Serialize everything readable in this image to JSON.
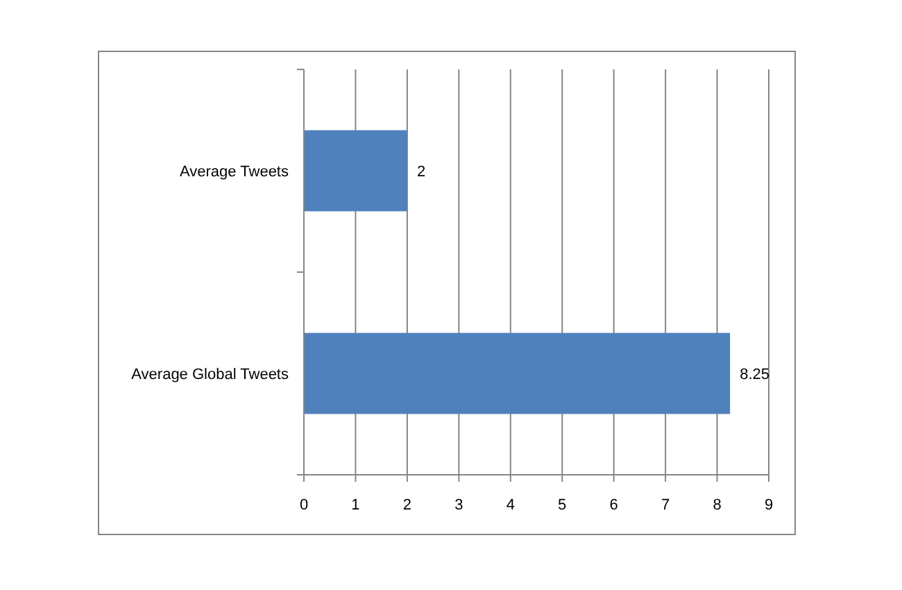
{
  "chart_data": {
    "type": "bar",
    "orientation": "horizontal",
    "categories": [
      "Average Tweets",
      "Average Global Tweets"
    ],
    "values": [
      2,
      8.25
    ],
    "color": "#4f81bd",
    "xlim": [
      0,
      9
    ],
    "xticks": [
      0,
      1,
      2,
      3,
      4,
      5,
      6,
      7,
      8,
      9
    ],
    "grid": "x",
    "data_labels": true
  }
}
